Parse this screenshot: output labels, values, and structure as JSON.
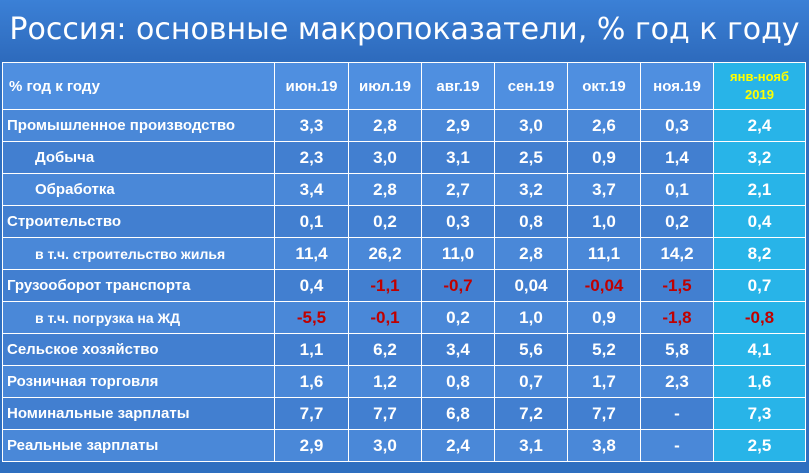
{
  "title": "Россия: основные макропоказатели, % год к году",
  "colors": {
    "background": "#2f6fc0",
    "header_cell": "#4f8fe0",
    "total_column": "#28b4e8",
    "total_header_text": "#ffff00",
    "negative_value": "#c00000",
    "text": "#ffffff"
  },
  "table": {
    "header": {
      "label": "% год к году",
      "columns": [
        "июн.19",
        "июл.19",
        "авг.19",
        "сен.19",
        "окт.19",
        "ноя.19"
      ],
      "total_line1": "янв-нояб",
      "total_line2": "2019"
    },
    "rows": [
      {
        "label": "Промышленное производство",
        "indent": false,
        "values": [
          "3,3",
          "2,8",
          "2,9",
          "3,0",
          "2,6",
          "0,3"
        ],
        "total": "2,4"
      },
      {
        "label": "Добыча",
        "indent": true,
        "values": [
          "2,3",
          "3,0",
          "3,1",
          "2,5",
          "0,9",
          "1,4"
        ],
        "total": "3,2"
      },
      {
        "label": "Обработка",
        "indent": true,
        "values": [
          "3,4",
          "2,8",
          "2,7",
          "3,2",
          "3,7",
          "0,1"
        ],
        "total": "2,1"
      },
      {
        "label": "Строительство",
        "indent": false,
        "values": [
          "0,1",
          "0,2",
          "0,3",
          "0,8",
          "1,0",
          "0,2"
        ],
        "total": "0,4"
      },
      {
        "label": "в т.ч. строительство жилья",
        "indent": true,
        "values": [
          "11,4",
          "26,2",
          "11,0",
          "2,8",
          "11,1",
          "14,2"
        ],
        "total": "8,2"
      },
      {
        "label": "Грузооборот транспорта",
        "indent": false,
        "values": [
          "0,4",
          "-1,1",
          "-0,7",
          "0,04",
          "-0,04",
          "-1,5"
        ],
        "total": "0,7"
      },
      {
        "label": "в т.ч. погрузка на ЖД",
        "indent": true,
        "values": [
          "-5,5",
          "-0,1",
          "0,2",
          "1,0",
          "0,9",
          "-1,8"
        ],
        "total": "-0,8"
      },
      {
        "label": "Сельское хозяйство",
        "indent": false,
        "values": [
          "1,1",
          "6,2",
          "3,4",
          "5,6",
          "5,2",
          "5,8"
        ],
        "total": "4,1"
      },
      {
        "label": "Розничная торговля",
        "indent": false,
        "values": [
          "1,6",
          "1,2",
          "0,8",
          "0,7",
          "1,7",
          "2,3"
        ],
        "total": "1,6"
      },
      {
        "label": "Номинальные зарплаты",
        "indent": false,
        "values": [
          "7,7",
          "7,7",
          "6,8",
          "7,2",
          "7,7",
          "-"
        ],
        "total": "7,3"
      },
      {
        "label": "Реальные зарплаты",
        "indent": false,
        "values": [
          "2,9",
          "3,0",
          "2,4",
          "3,1",
          "3,8",
          "-"
        ],
        "total": "2,5"
      }
    ]
  }
}
